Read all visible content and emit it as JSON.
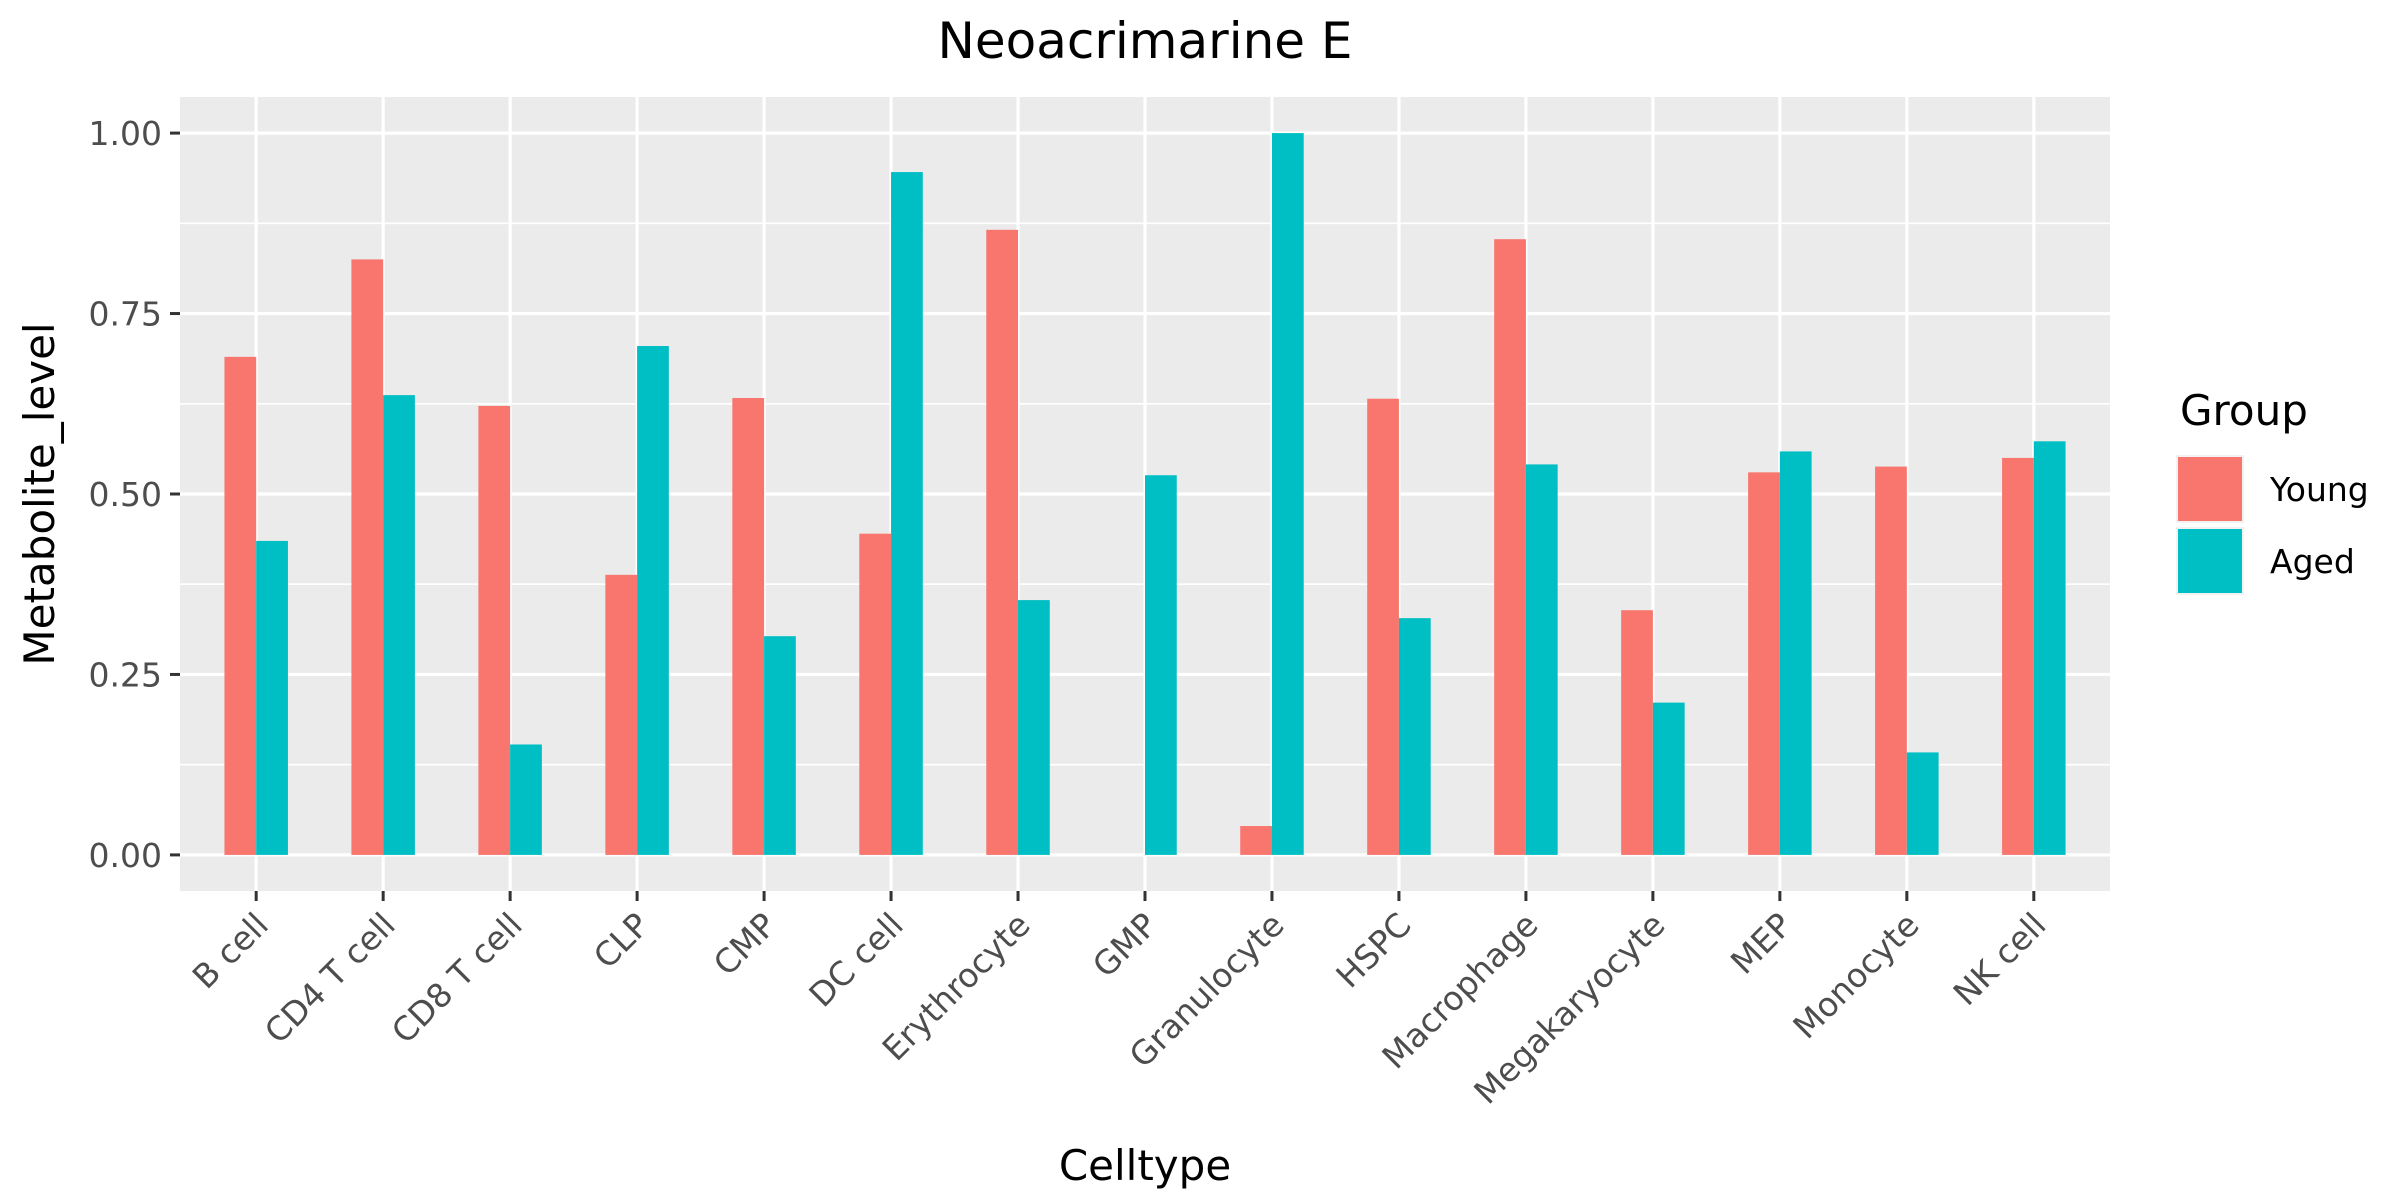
{
  "chart_data": {
    "type": "bar",
    "title": "Neoacrimarine E",
    "xlabel": "Celltype",
    "ylabel": "Metabolite_level",
    "categories": [
      "B cell",
      "CD4 T cell",
      "CD8 T cell",
      "CLP",
      "CMP",
      "DC cell",
      "Erythrocyte",
      "GMP",
      "Granulocyte",
      "HSPC",
      "Macrophage",
      "Megakaryocyte",
      "MEP",
      "Monocyte",
      "NK cell"
    ],
    "series": [
      {
        "name": "Young",
        "color": "#F8766D",
        "values": [
          0.69,
          0.825,
          0.622,
          0.388,
          0.633,
          0.445,
          0.866,
          0.0,
          0.04,
          0.632,
          0.853,
          0.339,
          0.53,
          0.538,
          0.55
        ]
      },
      {
        "name": "Aged",
        "color": "#00BFC4",
        "values": [
          0.435,
          0.637,
          0.153,
          0.705,
          0.303,
          0.946,
          0.353,
          0.526,
          1.0,
          0.328,
          0.541,
          0.211,
          0.559,
          0.142,
          0.573
        ]
      }
    ],
    "yticks": [
      "0.00",
      "0.25",
      "0.50",
      "0.75",
      "1.00"
    ],
    "ylim": [
      -0.05,
      1.05
    ],
    "legend": {
      "title": "Group",
      "position": "right"
    },
    "grid": true,
    "panel_background": "#EBEBEB",
    "grid_color": "#FFFFFF"
  }
}
